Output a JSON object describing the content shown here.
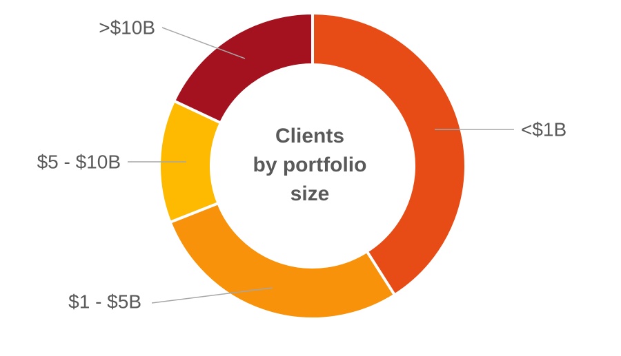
{
  "chart_data": {
    "type": "donut",
    "center_label": [
      "Clients",
      "by portfolio",
      "size"
    ],
    "categories": [
      "<$1B",
      "$1 - $5B",
      "$5 - $10B",
      ">$10B"
    ],
    "values": [
      41,
      28,
      13,
      18
    ],
    "colors": [
      "#E84C16",
      "#F7920A",
      "#FDBA00",
      "#A3121E"
    ]
  }
}
